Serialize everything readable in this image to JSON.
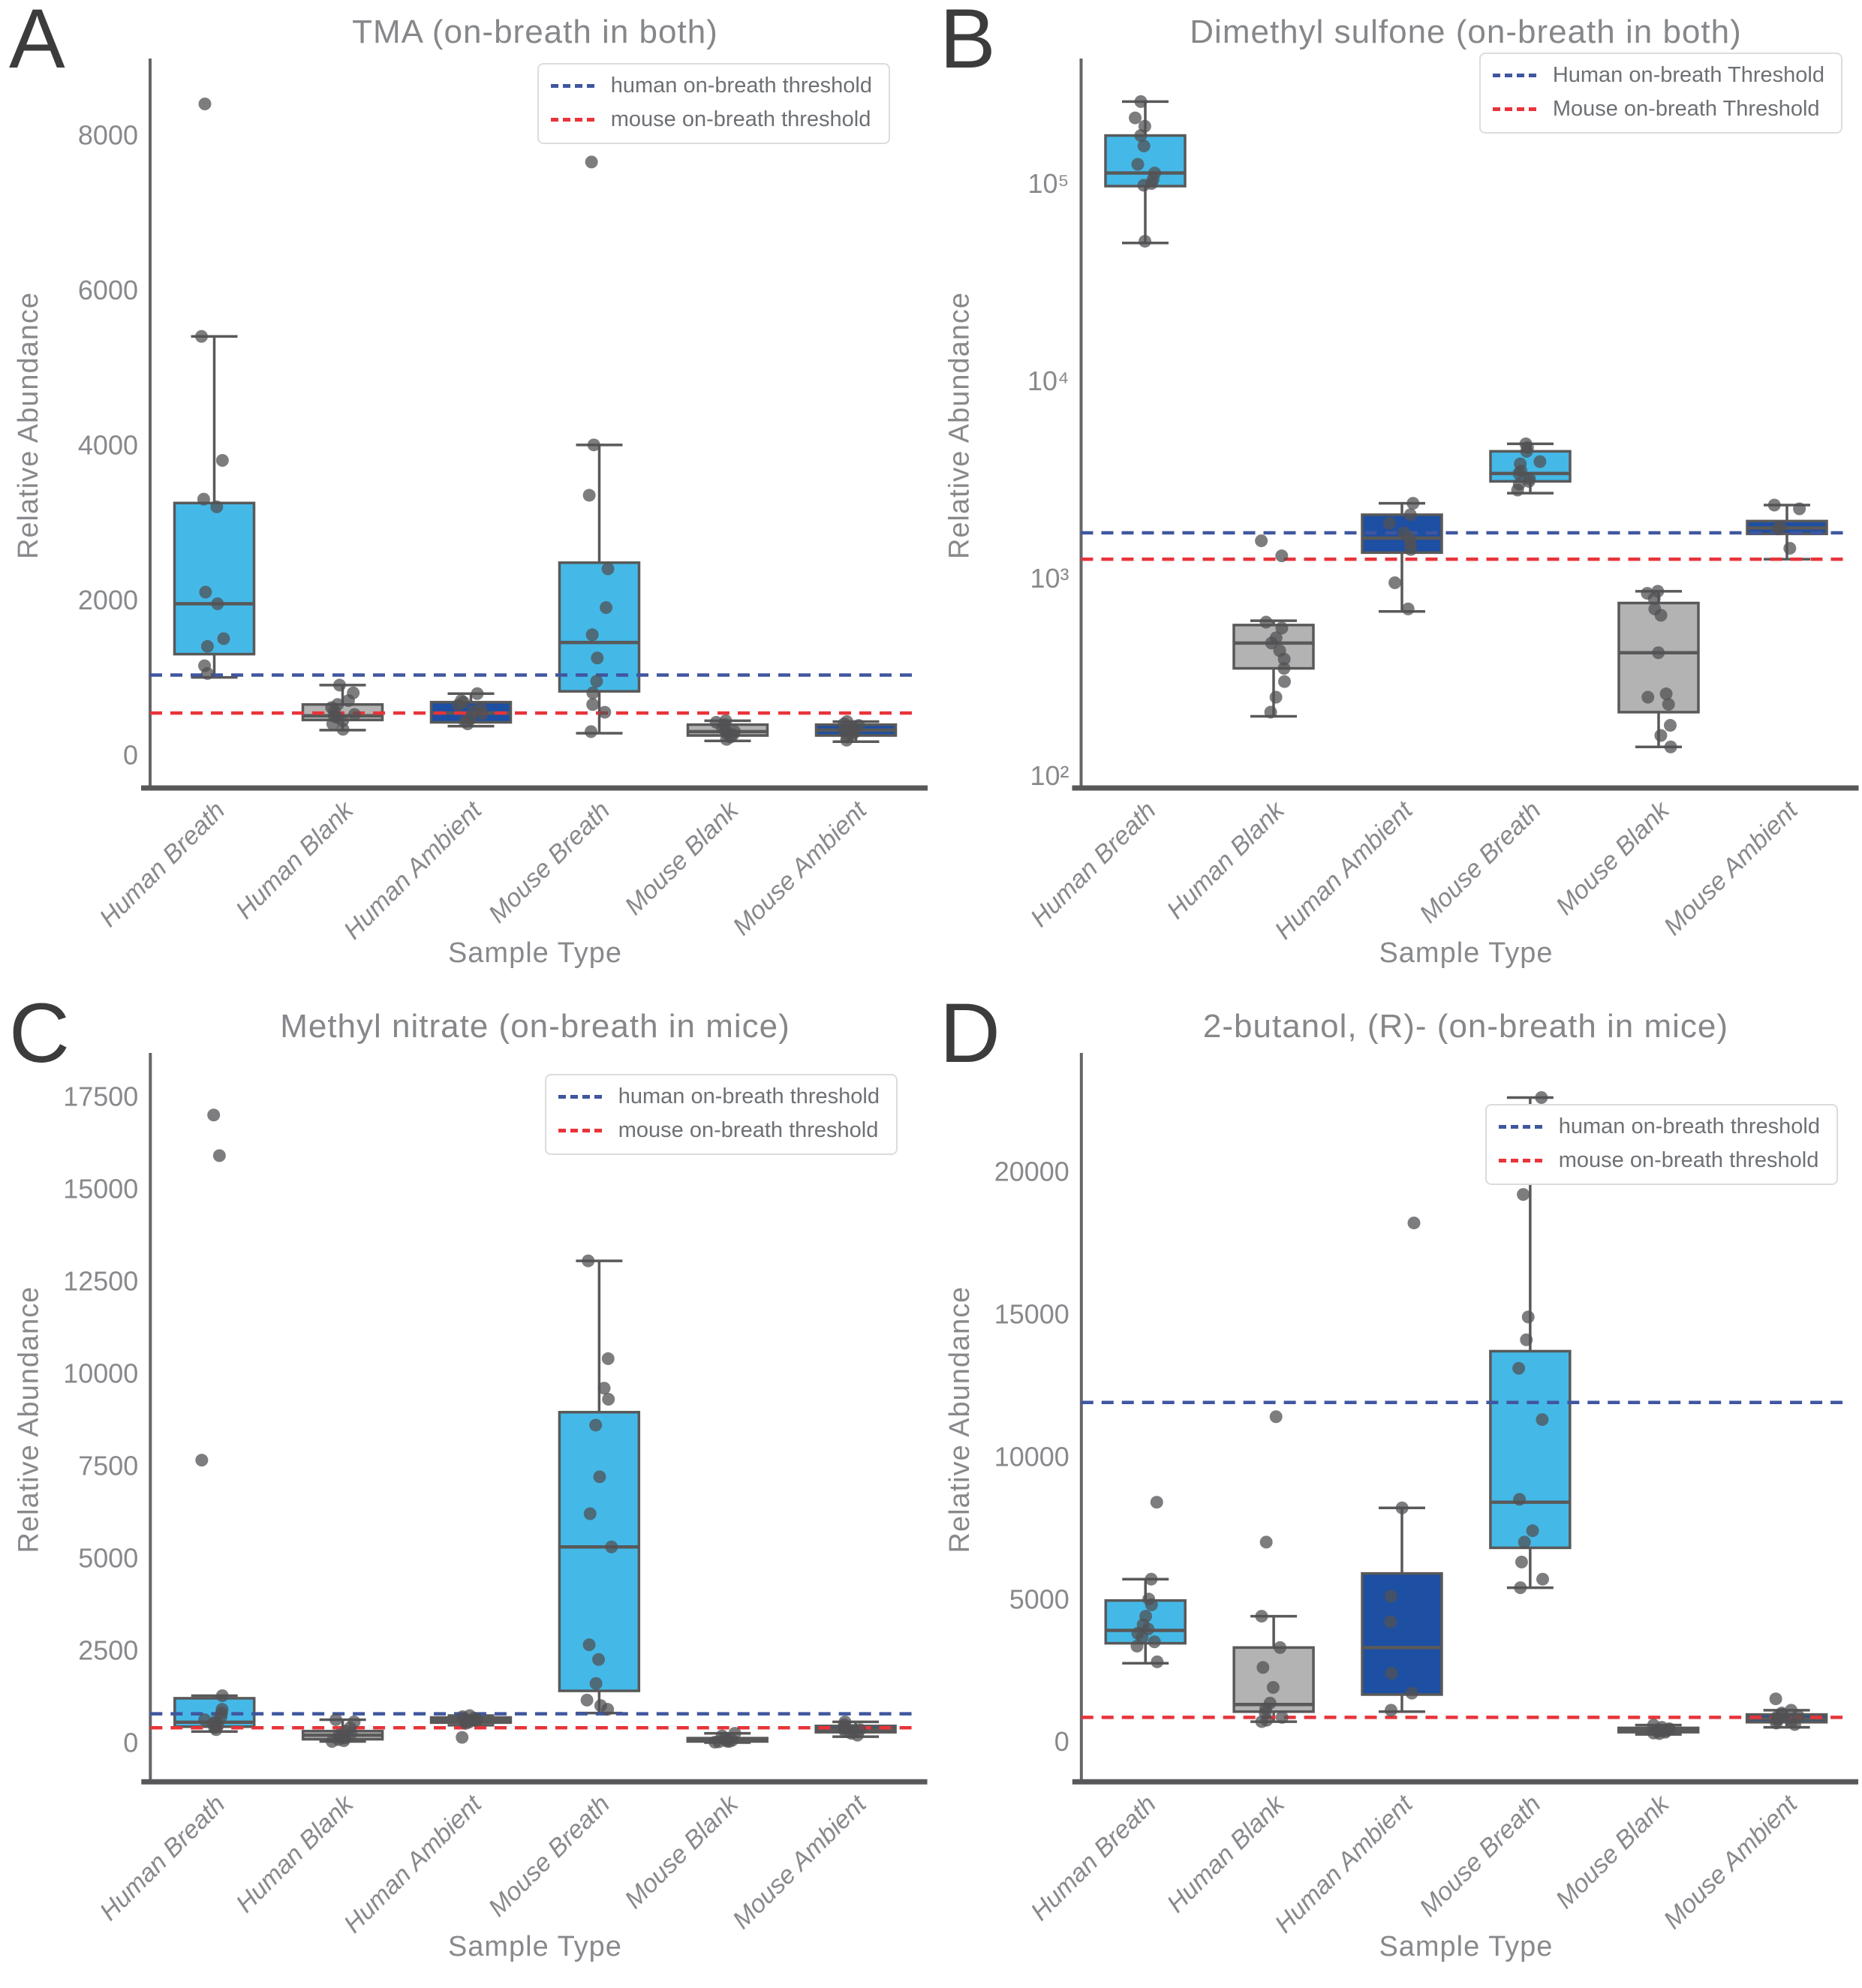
{
  "figure": {
    "background": "#ffffff",
    "colors": {
      "breath_box": "#44b9e8",
      "blank_box": "#b3b3b3",
      "ambient_box": "#1d4fa3",
      "box_border": "#595959",
      "data_point": "#515154",
      "human_threshold": "#40569f",
      "mouse_threshold": "#e8343a",
      "axis_line": "#666668",
      "bottom_spine": "#58585a",
      "tick_text": "#87898c",
      "title_text": "#85878a",
      "panel_letter": "#3c3c3c"
    }
  },
  "chart_data": [
    {
      "panel_letter": "A",
      "type": "box",
      "title": "TMA (on-breath in both)",
      "xlabel": "Sample Type",
      "ylabel": "Relative Abundance",
      "yscale": "linear",
      "ylim": [
        -350,
        8850
      ],
      "yticks": [
        {
          "v": 0,
          "label": "0"
        },
        {
          "v": 2000,
          "label": "2000"
        },
        {
          "v": 4000,
          "label": "4000"
        },
        {
          "v": 6000,
          "label": "6000"
        },
        {
          "v": 8000,
          "label": "8000"
        }
      ],
      "categories": [
        "Human Breath",
        "Human Blank",
        "Human Ambient",
        "Mouse Breath",
        "Mouse Blank",
        "Mouse Ambient"
      ],
      "legend": [
        "human on-breath threshold",
        "mouse on-breath threshold"
      ],
      "legend_position": "upper right",
      "grid": false,
      "thresholds": {
        "human": 1030,
        "mouse": 540
      },
      "boxes": [
        {
          "category": "Human Breath",
          "color": "breath_box",
          "whisker_low": 1000,
          "q1": 1300,
          "median": 1950,
          "q3": 3250,
          "whisker_high": 5400,
          "outliers": [
            8400
          ],
          "points": [
            5400,
            3800,
            3300,
            3200,
            2100,
            1950,
            1500,
            1400,
            1150,
            1050
          ]
        },
        {
          "category": "Human Blank",
          "color": "blank_box",
          "whisker_low": 320,
          "q1": 450,
          "median": 505,
          "q3": 650,
          "whisker_high": 900,
          "outliers": [],
          "points": [
            900,
            800,
            700,
            650,
            610,
            560,
            520,
            500,
            480,
            440,
            400,
            330
          ]
        },
        {
          "category": "Human Ambient",
          "color": "ambient_box",
          "whisker_low": 370,
          "q1": 420,
          "median": 540,
          "q3": 680,
          "whisker_high": 790,
          "outliers": [],
          "points": [
            790,
            700,
            680,
            640,
            600,
            560,
            530,
            470,
            430,
            400
          ]
        },
        {
          "category": "Mouse Breath",
          "color": "breath_box",
          "whisker_low": 280,
          "q1": 820,
          "median": 1450,
          "q3": 2480,
          "whisker_high": 4000,
          "outliers": [
            7650
          ],
          "points": [
            4000,
            3350,
            2400,
            1900,
            1550,
            1250,
            950,
            800,
            650,
            550,
            300
          ]
        },
        {
          "category": "Mouse Blank",
          "color": "blank_box",
          "whisker_low": 180,
          "q1": 250,
          "median": 300,
          "q3": 390,
          "whisker_high": 440,
          "outliers": [],
          "points": [
            440,
            420,
            390,
            350,
            320,
            300,
            280,
            260,
            230,
            200
          ]
        },
        {
          "category": "Mouse Ambient",
          "color": "ambient_box",
          "whisker_low": 170,
          "q1": 250,
          "median": 320,
          "q3": 390,
          "whisker_high": 430,
          "outliers": [],
          "points": [
            430,
            400,
            380,
            350,
            330,
            310,
            290,
            260,
            230,
            190
          ]
        }
      ]
    },
    {
      "panel_letter": "B",
      "type": "box",
      "title": "Dimethyl sulfone (on-breath in both)",
      "xlabel": "Sample Type",
      "ylabel": "Relative Abundance",
      "yscale": "log",
      "ylim": [
        93,
        380000
      ],
      "yticks": [
        {
          "v": 100,
          "label": "10²"
        },
        {
          "v": 1000,
          "label": "10³"
        },
        {
          "v": 10000,
          "label": "10⁴"
        },
        {
          "v": 100000,
          "label": "10⁵"
        }
      ],
      "categories": [
        "Human Breath",
        "Human Blank",
        "Human Ambient",
        "Mouse Breath",
        "Mouse Blank",
        "Mouse Ambient"
      ],
      "legend": [
        "Human on-breath Threshold",
        "Mouse on-breath Threshold"
      ],
      "legend_position": "upper right",
      "grid": false,
      "thresholds": {
        "human": 1700,
        "mouse": 1250
      },
      "boxes": [
        {
          "category": "Human Breath",
          "color": "breath_box",
          "whisker_low": 50000,
          "q1": 97000,
          "median": 113000,
          "q3": 175000,
          "whisker_high": 260000,
          "outliers": [],
          "points": [
            260000,
            215000,
            195000,
            175000,
            155000,
            125000,
            113000,
            105000,
            100000,
            98000,
            51000
          ]
        },
        {
          "category": "Human Blank",
          "color": "blank_box",
          "whisker_low": 200,
          "q1": 350,
          "median": 470,
          "q3": 580,
          "whisker_high": 610,
          "outliers": [
            1550,
            1300
          ],
          "points": [
            600,
            560,
            500,
            470,
            430,
            390,
            350,
            300,
            250,
            210
          ]
        },
        {
          "category": "Human Ambient",
          "color": "ambient_box",
          "whisker_low": 680,
          "q1": 1350,
          "median": 1600,
          "q3": 2100,
          "whisker_high": 2400,
          "outliers": [],
          "points": [
            2400,
            2100,
            1900,
            1700,
            1600,
            1500,
            1400,
            950,
            700
          ]
        },
        {
          "category": "Mouse Breath",
          "color": "breath_box",
          "whisker_low": 2700,
          "q1": 3100,
          "median": 3400,
          "q3": 4400,
          "whisker_high": 4800,
          "outliers": [],
          "points": [
            4800,
            4600,
            4400,
            3900,
            3800,
            3500,
            3400,
            3200,
            3100,
            3000,
            2800
          ]
        },
        {
          "category": "Mouse Blank",
          "color": "blank_box",
          "whisker_low": 140,
          "q1": 210,
          "median": 420,
          "q3": 750,
          "whisker_high": 860,
          "outliers": [],
          "points": [
            860,
            840,
            790,
            700,
            650,
            420,
            260,
            250,
            230,
            180,
            160,
            140
          ]
        },
        {
          "category": "Mouse Ambient",
          "color": "ambient_box",
          "whisker_low": 1250,
          "q1": 1680,
          "median": 1800,
          "q3": 1950,
          "whisker_high": 2350,
          "outliers": [],
          "points": [
            2350,
            2250,
            1820,
            1780,
            1420
          ]
        }
      ]
    },
    {
      "panel_letter": "C",
      "type": "box",
      "title": "Methyl nitrate (on-breath in mice)",
      "xlabel": "Sample Type",
      "ylabel": "Relative Abundance",
      "yscale": "linear",
      "ylim": [
        -900,
        18400
      ],
      "yticks": [
        {
          "v": 0,
          "label": "0"
        },
        {
          "v": 2500,
          "label": "2500"
        },
        {
          "v": 5000,
          "label": "5000"
        },
        {
          "v": 7500,
          "label": "7500"
        },
        {
          "v": 10000,
          "label": "10000"
        },
        {
          "v": 12500,
          "label": "12500"
        },
        {
          "v": 15000,
          "label": "15000"
        },
        {
          "v": 17500,
          "label": "17500"
        }
      ],
      "categories": [
        "Human Breath",
        "Human Blank",
        "Human Ambient",
        "Mouse Breath",
        "Mouse Blank",
        "Mouse Ambient"
      ],
      "legend": [
        "human on-breath threshold",
        "mouse on-breath threshold"
      ],
      "legend_position": "upper right",
      "grid": false,
      "thresholds": {
        "human": 780,
        "mouse": 400
      },
      "boxes": [
        {
          "category": "Human Breath",
          "color": "breath_box",
          "whisker_low": 300,
          "q1": 430,
          "median": 550,
          "q3": 1200,
          "whisker_high": 1270,
          "outliers": [
            17000,
            15900,
            7650
          ],
          "points": [
            1270,
            900,
            800,
            700,
            620,
            560,
            520,
            480,
            450,
            400,
            350
          ]
        },
        {
          "category": "Human Blank",
          "color": "blank_box",
          "whisker_low": 30,
          "q1": 90,
          "median": 200,
          "q3": 310,
          "whisker_high": 620,
          "outliers": [],
          "points": [
            620,
            560,
            400,
            310,
            250,
            200,
            160,
            120,
            80,
            50,
            30
          ]
        },
        {
          "category": "Human Ambient",
          "color": "ambient_box",
          "whisker_low": 470,
          "q1": 540,
          "median": 610,
          "q3": 680,
          "whisker_high": 730,
          "outliers": [
            140
          ],
          "points": [
            730,
            700,
            660,
            630,
            600,
            580,
            550,
            520
          ]
        },
        {
          "category": "Mouse Breath",
          "color": "breath_box",
          "whisker_low": 800,
          "q1": 1400,
          "median": 5300,
          "q3": 8950,
          "whisker_high": 13050,
          "outliers": [],
          "points": [
            13050,
            10400,
            9600,
            9300,
            8600,
            7200,
            6200,
            5300,
            2650,
            2250,
            1600,
            1150,
            1000,
            900
          ]
        },
        {
          "category": "Mouse Blank",
          "color": "blank_box",
          "whisker_low": 0,
          "q1": 30,
          "median": 60,
          "q3": 120,
          "whisker_high": 250,
          "outliers": [],
          "points": [
            250,
            180,
            120,
            90,
            60,
            40,
            30,
            20,
            10
          ]
        },
        {
          "category": "Mouse Ambient",
          "color": "ambient_box",
          "whisker_low": 160,
          "q1": 280,
          "median": 360,
          "q3": 450,
          "whisker_high": 560,
          "outliers": [],
          "points": [
            560,
            480,
            420,
            380,
            350,
            330,
            300,
            250,
            200
          ]
        }
      ]
    },
    {
      "panel_letter": "D",
      "type": "box",
      "title": "2-butanol, (R)- (on-breath in mice)",
      "xlabel": "Sample Type",
      "ylabel": "Relative Abundance",
      "yscale": "linear",
      "ylim": [
        -1200,
        23800
      ],
      "yticks": [
        {
          "v": 0,
          "label": "0"
        },
        {
          "v": 5000,
          "label": "5000"
        },
        {
          "v": 10000,
          "label": "10000"
        },
        {
          "v": 15000,
          "label": "15000"
        },
        {
          "v": 20000,
          "label": "20000"
        }
      ],
      "categories": [
        "Human Breath",
        "Human Blank",
        "Human Ambient",
        "Mouse Breath",
        "Mouse Blank",
        "Mouse Ambient"
      ],
      "legend": [
        "human on-breath threshold",
        "mouse on-breath threshold"
      ],
      "legend_position": "upper right",
      "grid": false,
      "thresholds": {
        "human": 11900,
        "mouse": 850
      },
      "boxes": [
        {
          "category": "Human Breath",
          "color": "breath_box",
          "whisker_low": 2750,
          "q1": 3450,
          "median": 3900,
          "q3": 4950,
          "whisker_high": 5700,
          "outliers": [
            8400
          ],
          "points": [
            5700,
            5000,
            4800,
            4400,
            4100,
            3950,
            3800,
            3650,
            3500,
            3350,
            2800
          ]
        },
        {
          "category": "Human Blank",
          "color": "blank_box",
          "whisker_low": 700,
          "q1": 1050,
          "median": 1300,
          "q3": 3300,
          "whisker_high": 4400,
          "outliers": [
            11400,
            7000
          ],
          "points": [
            4400,
            3300,
            2600,
            1900,
            1350,
            1150,
            1000,
            850,
            750,
            700
          ]
        },
        {
          "category": "Human Ambient",
          "color": "ambient_box",
          "whisker_low": 1050,
          "q1": 1650,
          "median": 3300,
          "q3": 5900,
          "whisker_high": 8200,
          "outliers": [
            18200
          ],
          "points": [
            8200,
            5100,
            4200,
            2400,
            1700,
            1100
          ]
        },
        {
          "category": "Mouse Breath",
          "color": "breath_box",
          "whisker_low": 5400,
          "q1": 6800,
          "median": 8400,
          "q3": 13700,
          "whisker_high": 22600,
          "outliers": [],
          "points": [
            22600,
            19200,
            14900,
            14100,
            13100,
            11300,
            8500,
            7400,
            7000,
            6300,
            5700,
            5400
          ]
        },
        {
          "category": "Mouse Blank",
          "color": "blank_box",
          "whisker_low": 250,
          "q1": 330,
          "median": 400,
          "q3": 480,
          "whisker_high": 580,
          "outliers": [],
          "points": [
            580,
            500,
            450,
            420,
            400,
            380,
            350,
            330,
            300,
            280
          ]
        },
        {
          "category": "Mouse Ambient",
          "color": "ambient_box",
          "whisker_low": 500,
          "q1": 680,
          "median": 800,
          "q3": 950,
          "whisker_high": 1100,
          "outliers": [
            1500
          ],
          "points": [
            1100,
            1000,
            950,
            900,
            850,
            800,
            750,
            700,
            650,
            600
          ]
        }
      ]
    }
  ]
}
